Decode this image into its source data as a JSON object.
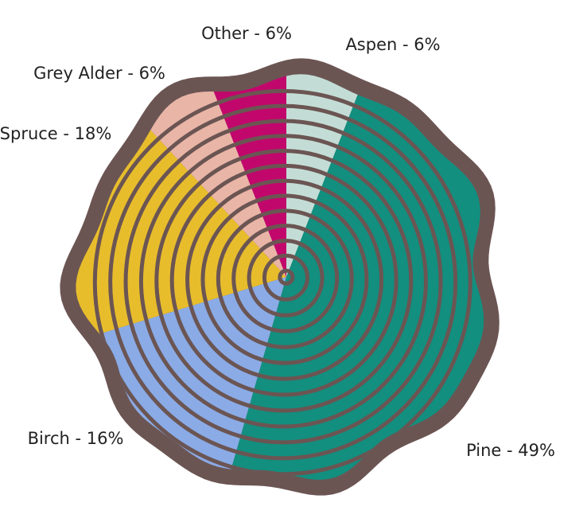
{
  "chart_data": {
    "type": "pie",
    "categories": [
      "Aspen",
      "Pine",
      "Birch",
      "Spruce",
      "Grey Alder",
      "Other"
    ],
    "value_labels": [
      "Aspen - 6%",
      "Pine - 49%",
      "Birch - 16%",
      "Spruce - 18%",
      "Grey Alder - 6%",
      "Other - 6%"
    ],
    "values": [
      6,
      49,
      16,
      18,
      6,
      6
    ],
    "colors": [
      "#c3ddd6",
      "#128f7f",
      "#8aabe6",
      "#e8bd2c",
      "#e9b5a7",
      "#c2076c"
    ]
  }
}
